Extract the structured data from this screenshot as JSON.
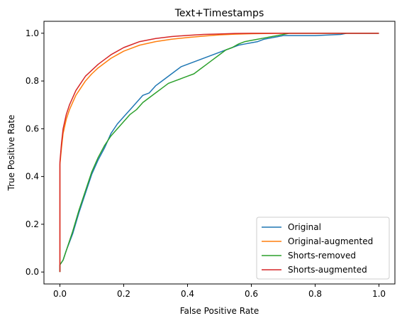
{
  "chart_data": {
    "type": "line",
    "title": "Text+Timestamps",
    "xlabel": "False Positive Rate",
    "ylabel": "True Positive Rate",
    "xlim": [
      -0.05,
      1.05
    ],
    "ylim": [
      -0.05,
      1.05
    ],
    "xticks": [
      0.0,
      0.2,
      0.4,
      0.6,
      0.8,
      1.0
    ],
    "yticks": [
      0.0,
      0.2,
      0.4,
      0.6,
      0.8,
      1.0
    ],
    "tick_labels": {
      "x": [
        "0.0",
        "0.2",
        "0.4",
        "0.6",
        "0.8",
        "1.0"
      ],
      "y": [
        "0.0",
        "0.2",
        "0.4",
        "0.6",
        "0.8",
        "1.0"
      ]
    },
    "grid": false,
    "legend_position": "lower-right",
    "series": [
      {
        "name": "Original",
        "color": "#1f77b4",
        "x": [
          0,
          0.0,
          0.01,
          0.02,
          0.04,
          0.06,
          0.08,
          0.1,
          0.12,
          0.14,
          0.16,
          0.18,
          0.2,
          0.22,
          0.24,
          0.26,
          0.28,
          0.3,
          0.32,
          0.34,
          0.36,
          0.38,
          0.4,
          0.42,
          0.44,
          0.46,
          0.48,
          0.5,
          0.52,
          0.54,
          0.56,
          0.58,
          0.6,
          0.62,
          0.64,
          0.66,
          0.68,
          0.7,
          0.75,
          0.8,
          0.88,
          0.9,
          1.0
        ],
        "y": [
          0,
          0.03,
          0.05,
          0.09,
          0.16,
          0.25,
          0.33,
          0.41,
          0.47,
          0.52,
          0.58,
          0.62,
          0.65,
          0.68,
          0.71,
          0.74,
          0.75,
          0.78,
          0.8,
          0.82,
          0.84,
          0.86,
          0.87,
          0.88,
          0.89,
          0.9,
          0.91,
          0.92,
          0.93,
          0.94,
          0.95,
          0.955,
          0.96,
          0.965,
          0.975,
          0.98,
          0.985,
          0.99,
          0.99,
          0.99,
          0.995,
          1.0,
          1.0
        ]
      },
      {
        "name": "Original-augmented",
        "color": "#ff7f0e",
        "x": [
          0,
          0.0,
          0.005,
          0.01,
          0.02,
          0.03,
          0.04,
          0.05,
          0.06,
          0.08,
          0.1,
          0.12,
          0.14,
          0.16,
          0.18,
          0.2,
          0.22,
          0.25,
          0.3,
          0.35,
          0.4,
          0.45,
          0.5,
          0.55,
          0.6,
          0.7,
          0.8,
          1.0
        ],
        "y": [
          0,
          0.45,
          0.52,
          0.58,
          0.64,
          0.68,
          0.71,
          0.74,
          0.76,
          0.8,
          0.83,
          0.855,
          0.875,
          0.895,
          0.91,
          0.925,
          0.935,
          0.95,
          0.965,
          0.975,
          0.982,
          0.988,
          0.993,
          0.996,
          0.998,
          1.0,
          1.0,
          1.0
        ]
      },
      {
        "name": "Shorts-removed",
        "color": "#2ca02c",
        "x": [
          0,
          0.0,
          0.01,
          0.02,
          0.04,
          0.06,
          0.08,
          0.1,
          0.12,
          0.14,
          0.16,
          0.18,
          0.2,
          0.22,
          0.24,
          0.26,
          0.28,
          0.3,
          0.32,
          0.34,
          0.36,
          0.38,
          0.4,
          0.42,
          0.44,
          0.46,
          0.48,
          0.5,
          0.52,
          0.54,
          0.56,
          0.58,
          0.6,
          0.62,
          0.64,
          0.66,
          0.68,
          0.7,
          0.72,
          1.0
        ],
        "y": [
          0,
          0.03,
          0.05,
          0.09,
          0.17,
          0.26,
          0.34,
          0.42,
          0.48,
          0.53,
          0.57,
          0.6,
          0.63,
          0.66,
          0.68,
          0.71,
          0.73,
          0.75,
          0.77,
          0.79,
          0.8,
          0.81,
          0.82,
          0.83,
          0.85,
          0.87,
          0.89,
          0.91,
          0.93,
          0.94,
          0.955,
          0.965,
          0.97,
          0.975,
          0.98,
          0.985,
          0.99,
          0.995,
          1.0,
          1.0
        ]
      },
      {
        "name": "Shorts-augmented",
        "color": "#d62728",
        "x": [
          0,
          0.0,
          0.005,
          0.01,
          0.02,
          0.03,
          0.04,
          0.05,
          0.06,
          0.08,
          0.1,
          0.12,
          0.14,
          0.16,
          0.18,
          0.2,
          0.22,
          0.25,
          0.3,
          0.35,
          0.4,
          0.45,
          0.5,
          0.55,
          0.6,
          0.7,
          0.8,
          1.0
        ],
        "y": [
          0,
          0.46,
          0.54,
          0.6,
          0.66,
          0.7,
          0.73,
          0.76,
          0.78,
          0.82,
          0.845,
          0.87,
          0.89,
          0.91,
          0.925,
          0.94,
          0.95,
          0.965,
          0.978,
          0.986,
          0.991,
          0.995,
          0.997,
          0.999,
          1.0,
          1.0,
          1.0,
          1.0
        ]
      }
    ]
  }
}
